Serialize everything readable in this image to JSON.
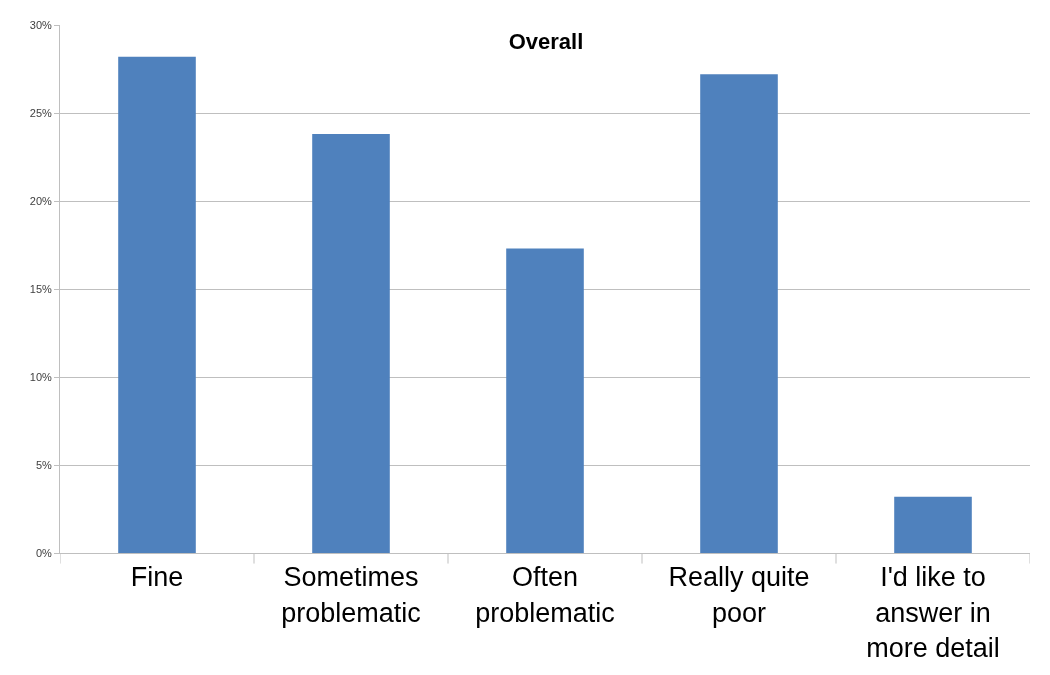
{
  "chart_data": {
    "type": "bar",
    "title": "Overall",
    "categories": [
      "Fine",
      "Sometimes\nproblematic",
      "Often\nproblematic",
      "Really quite\npoor",
      "I'd like to\nanswer in\nmore detail"
    ],
    "values": [
      28.2,
      23.8,
      17.3,
      27.2,
      3.2
    ],
    "color": "#4f81bd",
    "ylim": [
      0,
      30
    ],
    "yticks": [
      {
        "value": 0,
        "label": "0%"
      },
      {
        "value": 5,
        "label": "5%"
      },
      {
        "value": 10,
        "label": "10%"
      },
      {
        "value": 15,
        "label": "15%"
      },
      {
        "value": 20,
        "label": "20%"
      },
      {
        "value": 25,
        "label": "25%"
      },
      {
        "value": 30,
        "label": "30%"
      }
    ],
    "grid": "y"
  }
}
